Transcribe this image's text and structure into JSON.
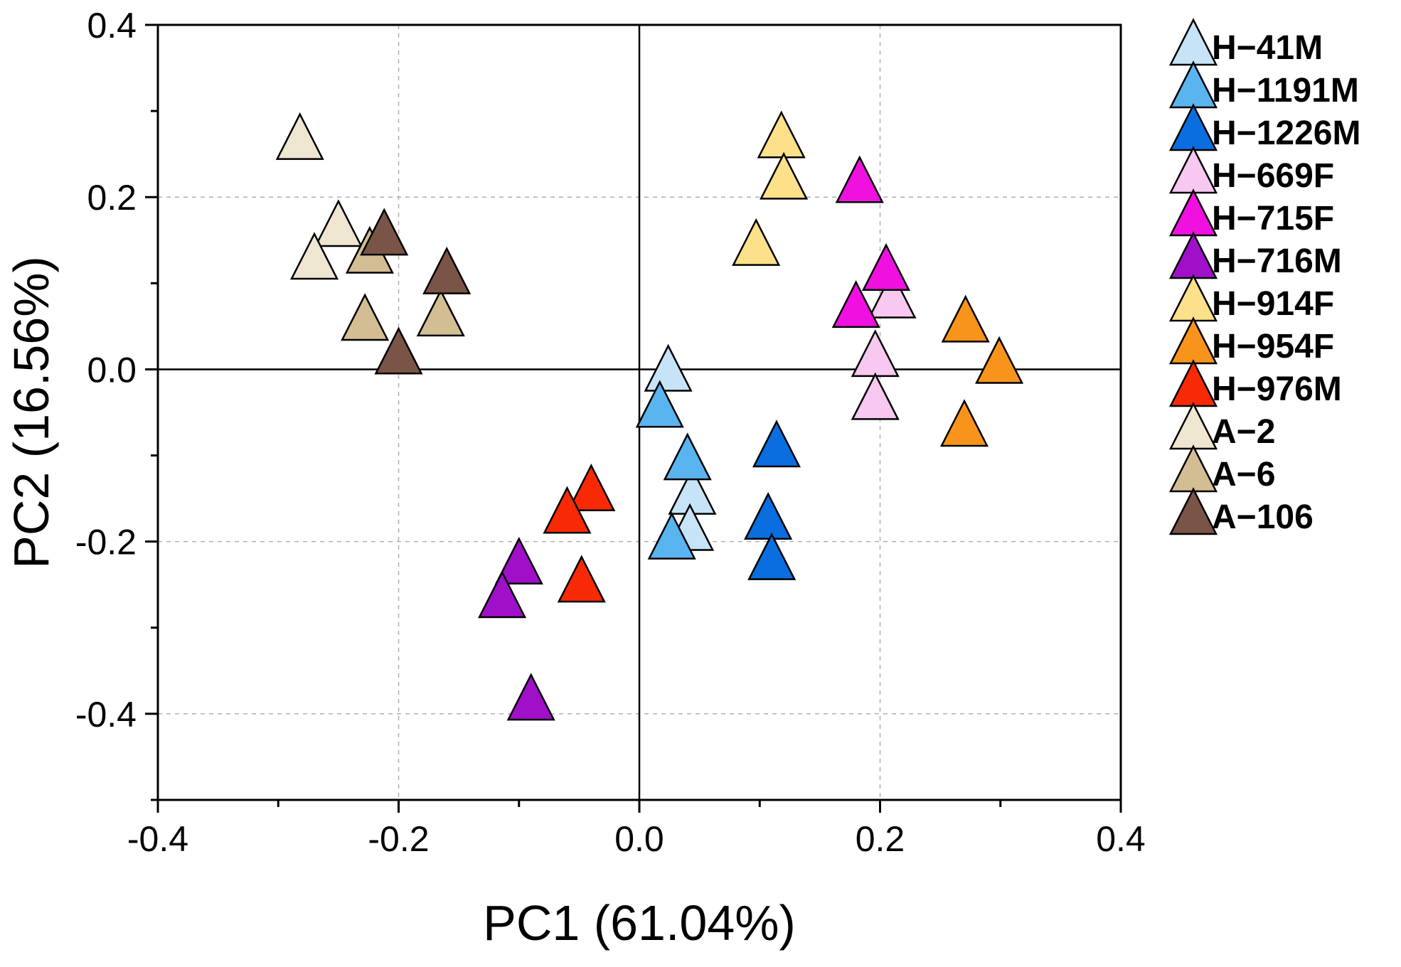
{
  "chart_data": {
    "type": "scatter",
    "title": "",
    "xlabel": "PC1 (61.04%)",
    "ylabel": "PC2 (16.56%)",
    "xlim": [
      -0.4,
      0.4
    ],
    "ylim": [
      -0.5,
      0.4
    ],
    "xticks": [
      -0.4,
      -0.2,
      0.0,
      0.2,
      0.4
    ],
    "xtick_labels": [
      "-0.4",
      "-0.2",
      "0.0",
      "0.2",
      "0.4"
    ],
    "yticks": [
      0.4,
      0.2,
      0.0,
      -0.2,
      -0.4
    ],
    "ytick_labels": [
      "0.4",
      "0.2",
      "0.0",
      "-0.2",
      "-0.4"
    ],
    "grid": true,
    "marker": "triangle",
    "legend_position": "right-outside",
    "series": [
      {
        "name": "H−41M",
        "color": "#c6e3f8",
        "points": [
          [
            0.024,
            -0.005
          ],
          [
            0.044,
            -0.148
          ],
          [
            0.042,
            -0.19
          ]
        ]
      },
      {
        "name": "H−1191M",
        "color": "#5ab4ef",
        "points": [
          [
            0.017,
            -0.047
          ],
          [
            0.04,
            -0.108
          ],
          [
            0.027,
            -0.2
          ]
        ]
      },
      {
        "name": "H−1226M",
        "color": "#0a6ee0",
        "points": [
          [
            0.114,
            -0.093
          ],
          [
            0.107,
            -0.177
          ],
          [
            0.11,
            -0.224
          ]
        ]
      },
      {
        "name": "H−669F",
        "color": "#f8c8f0",
        "points": [
          [
            0.21,
            0.08
          ],
          [
            0.196,
            0.012
          ],
          [
            0.196,
            -0.038
          ]
        ]
      },
      {
        "name": "H−715F",
        "color": "#f011e0",
        "points": [
          [
            0.183,
            0.214
          ],
          [
            0.205,
            0.112
          ],
          [
            0.18,
            0.069
          ]
        ]
      },
      {
        "name": "H−716M",
        "color": "#a010c8",
        "points": [
          [
            -0.1,
            -0.229
          ],
          [
            -0.114,
            -0.268
          ],
          [
            -0.09,
            -0.387
          ]
        ]
      },
      {
        "name": "H−914F",
        "color": "#fde08a",
        "points": [
          [
            0.118,
            0.266
          ],
          [
            0.12,
            0.218
          ],
          [
            0.097,
            0.141
          ]
        ]
      },
      {
        "name": "H−954F",
        "color": "#f8941c",
        "points": [
          [
            0.271,
            0.052
          ],
          [
            0.299,
            0.004
          ],
          [
            0.27,
            -0.069
          ]
        ]
      },
      {
        "name": "H−976M",
        "color": "#f82a06",
        "points": [
          [
            -0.04,
            -0.144
          ],
          [
            -0.06,
            -0.17
          ],
          [
            -0.048,
            -0.25
          ]
        ]
      },
      {
        "name": "A−2",
        "color": "#efe6d2",
        "points": [
          [
            -0.282,
            0.264
          ],
          [
            -0.25,
            0.163
          ],
          [
            -0.27,
            0.125
          ]
        ]
      },
      {
        "name": "A−6",
        "color": "#d2be92",
        "points": [
          [
            -0.224,
            0.132
          ],
          [
            -0.228,
            0.054
          ],
          [
            -0.165,
            0.059
          ]
        ]
      },
      {
        "name": "A−106",
        "color": "#7a5446",
        "points": [
          [
            -0.212,
            0.153
          ],
          [
            -0.16,
            0.108
          ],
          [
            -0.2,
            0.015
          ]
        ]
      }
    ]
  }
}
